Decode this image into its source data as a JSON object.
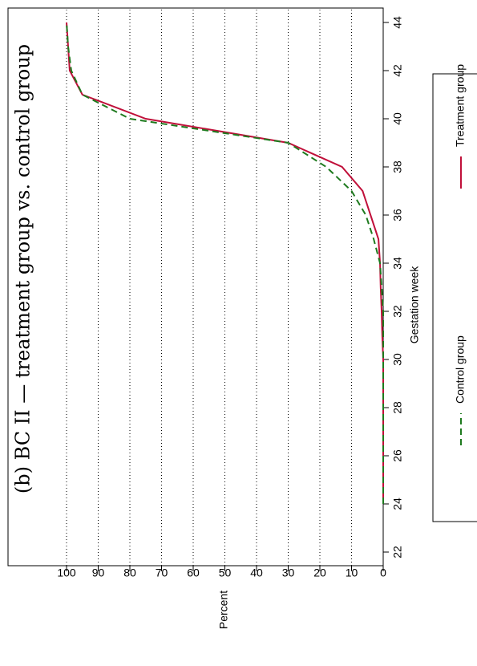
{
  "chart_data": {
    "type": "line",
    "title": "(b) BC II — treatment group vs. control group",
    "x_label": "Gestation week",
    "y_label": "Percent",
    "x": [
      24,
      25,
      26,
      27,
      28,
      29,
      30,
      31,
      32,
      33,
      34,
      35,
      36,
      37,
      38,
      39,
      40,
      41,
      42,
      43,
      44
    ],
    "series": [
      {
        "name": "Treatment group",
        "color": "#c0103a",
        "dash": "solid",
        "values": [
          0,
          0,
          0,
          0,
          0,
          0,
          0,
          0.3,
          0.5,
          0.8,
          1,
          1.5,
          4,
          6.5,
          13,
          30,
          75,
          95,
          99,
          99.5,
          100
        ]
      },
      {
        "name": "Control group",
        "color": "#1e7a1e",
        "dash": "dashed",
        "values": [
          0,
          0,
          0,
          0,
          0,
          0,
          0,
          0,
          0,
          0.5,
          1,
          3,
          5.5,
          10,
          18,
          30,
          80,
          95,
          98.5,
          99.5,
          100
        ]
      }
    ],
    "xlim": [
      22,
      44
    ],
    "xticks": [
      22,
      24,
      26,
      28,
      30,
      32,
      34,
      36,
      38,
      40,
      42,
      44
    ],
    "ylim": [
      0,
      100
    ],
    "yticks": [
      0,
      10,
      20,
      30,
      40,
      50,
      60,
      70,
      80,
      90,
      100
    ],
    "grid": true,
    "legend": "bottom"
  }
}
